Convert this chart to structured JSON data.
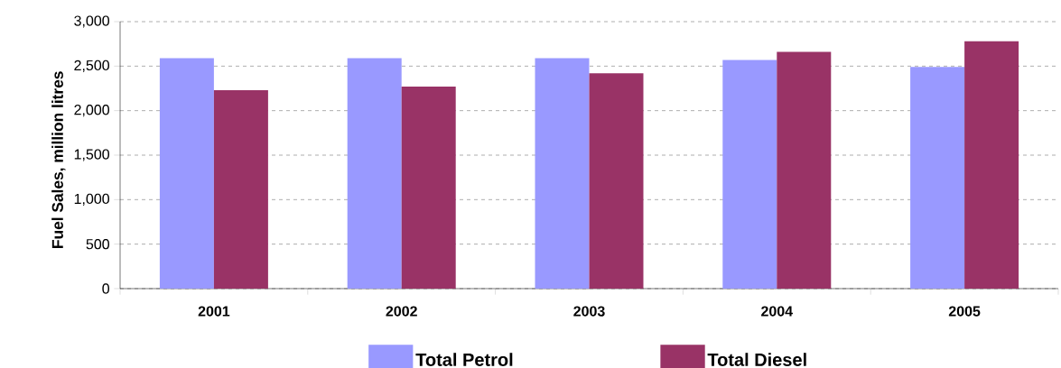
{
  "chart_data": {
    "type": "bar",
    "ylabel": "Fuel Sales, million litres",
    "categories": [
      "2001",
      "2002",
      "2003",
      "2004",
      "2005"
    ],
    "series": [
      {
        "name": "Total Petrol",
        "color": "#9999ff",
        "values": [
          2590,
          2590,
          2590,
          2570,
          2490
        ]
      },
      {
        "name": "Total Diesel",
        "color": "#993366",
        "values": [
          2230,
          2270,
          2420,
          2660,
          2780
        ]
      }
    ],
    "ylim": [
      0,
      3000
    ],
    "yticks": [
      0,
      500,
      {
        "value": 1000,
        "label": "1,000"
      },
      {
        "value": 1500,
        "label": "1,500"
      },
      {
        "value": 2000,
        "label": "2,000"
      },
      {
        "value": 2500,
        "label": "2,500"
      },
      {
        "value": 3000,
        "label": "3,000"
      }
    ],
    "grid": "y",
    "legend": "bottom"
  }
}
